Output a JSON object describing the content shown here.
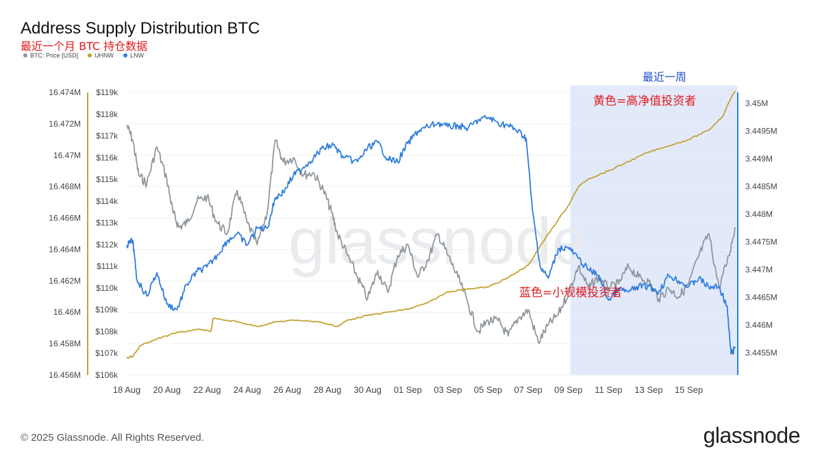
{
  "header": {
    "title": "Address Supply Distribution BTC",
    "subtitle": "最近一个月 BTC 持仓数据"
  },
  "legend": [
    {
      "label": "BTC: Price [USD]",
      "color": "#8f979c"
    },
    {
      "label": "UHNW",
      "color": "#c3a233"
    },
    {
      "label": "LNW",
      "color": "#2f7ddb"
    }
  ],
  "annotations": {
    "recent_week": "最近一周",
    "yellow_note": "黄色=高净值投资者",
    "blue_note": "蓝色=小规模投资者"
  },
  "footer": {
    "copyright": "© 2025 Glassnode. All Rights Reserved.",
    "brand": "glassnode"
  },
  "watermark": "glassnode",
  "colors": {
    "price": "#8f979c",
    "uhnw": "#c3a233",
    "lnw": "#2f7ddb",
    "highlight": "#dfe7fb",
    "annotation_red": "#e01b1b",
    "annotation_blue": "#1e50c8"
  },
  "chart_data": {
    "type": "line",
    "x_ticks": [
      "18 Aug",
      "20 Aug",
      "22 Aug",
      "24 Aug",
      "26 Aug",
      "28 Aug",
      "30 Aug",
      "01 Sep",
      "03 Sep",
      "05 Sep",
      "07 Sep",
      "09 Sep",
      "11 Sep",
      "13 Sep",
      "15 Sep"
    ],
    "x_range_days": [
      0,
      30.3
    ],
    "highlight_range_days": [
      22.1,
      30.3
    ],
    "y_left_ticks": [
      "16.474M",
      "16.472M",
      "16.47M",
      "16.468M",
      "16.466M",
      "16.464M",
      "16.462M",
      "16.46M",
      "16.458M",
      "16.456M"
    ],
    "y_left_range": [
      16.456,
      16.474
    ],
    "y_price_ticks": [
      "$119k",
      "$118k",
      "$117k",
      "$116k",
      "$115k",
      "$114k",
      "$113k",
      "$112k",
      "$111k",
      "$110k",
      "$109k",
      "$108k",
      "$107k",
      "$106k"
    ],
    "y_price_range": [
      106,
      119
    ],
    "y_right_ticks": [
      "3.45M",
      "3.4495M",
      "3.449M",
      "3.4485M",
      "3.448M",
      "3.4475M",
      "3.447M",
      "3.4465M",
      "3.446M",
      "3.4455M"
    ],
    "y_right_range": [
      3.4451,
      3.4502
    ],
    "series": [
      {
        "name": "BTC: Price [USD]",
        "axis": "price",
        "points": [
          [
            0,
            117.5
          ],
          [
            0.3,
            116.8
          ],
          [
            0.6,
            115.2
          ],
          [
            1,
            114.8
          ],
          [
            1.5,
            116.5
          ],
          [
            2,
            115.0
          ],
          [
            2.3,
            113.5
          ],
          [
            2.6,
            112.8
          ],
          [
            3,
            113.0
          ],
          [
            3.5,
            114.0
          ],
          [
            4,
            114.2
          ],
          [
            4.5,
            113.0
          ],
          [
            5,
            112.5
          ],
          [
            5.5,
            114.5
          ],
          [
            6,
            113.0
          ],
          [
            6.5,
            112.0
          ],
          [
            7,
            113.5
          ],
          [
            7.4,
            116.8
          ],
          [
            7.8,
            115.8
          ],
          [
            8.3,
            116.0
          ],
          [
            8.8,
            115.2
          ],
          [
            9.3,
            115.3
          ],
          [
            9.8,
            114.5
          ],
          [
            10.2,
            113.5
          ],
          [
            10.5,
            112.5
          ],
          [
            11,
            111.5
          ],
          [
            11.5,
            110.5
          ],
          [
            12,
            109.5
          ],
          [
            12.5,
            110.8
          ],
          [
            13,
            109.8
          ],
          [
            13.5,
            111.5
          ],
          [
            14,
            112.0
          ],
          [
            14.5,
            110.5
          ],
          [
            15,
            111.3
          ],
          [
            15.5,
            112.5
          ],
          [
            16,
            111.5
          ],
          [
            16.5,
            110.5
          ],
          [
            17,
            109.3
          ],
          [
            17.5,
            108.0
          ],
          [
            18,
            108.5
          ],
          [
            18.5,
            108.5
          ],
          [
            19,
            107.8
          ],
          [
            19.5,
            108.6
          ],
          [
            20,
            109.0
          ],
          [
            20.5,
            107.5
          ],
          [
            21,
            108.3
          ],
          [
            21.5,
            108.8
          ],
          [
            22,
            109.8
          ],
          [
            22.5,
            111.0
          ],
          [
            23,
            110.0
          ],
          [
            23.5,
            110.5
          ],
          [
            24,
            110.0
          ],
          [
            24.5,
            110.2
          ],
          [
            25,
            111.0
          ],
          [
            25.5,
            110.5
          ],
          [
            26,
            110.3
          ],
          [
            26.5,
            109.5
          ],
          [
            27,
            110.0
          ],
          [
            27.5,
            109.6
          ],
          [
            28,
            110.2
          ],
          [
            28.5,
            111.5
          ],
          [
            29,
            112.5
          ],
          [
            29.5,
            110.0
          ],
          [
            30,
            111.5
          ],
          [
            30.3,
            112.8
          ]
        ]
      },
      {
        "name": "UHNW",
        "axis": "left",
        "points": [
          [
            0,
            16.4571
          ],
          [
            0.3,
            16.4572
          ],
          [
            0.7,
            16.4579
          ],
          [
            1.5,
            16.4583
          ],
          [
            2.5,
            16.4587
          ],
          [
            3.5,
            16.4589
          ],
          [
            4.2,
            16.4588
          ],
          [
            4.3,
            16.4596
          ],
          [
            5.5,
            16.4594
          ],
          [
            6.5,
            16.4591
          ],
          [
            7.5,
            16.4594
          ],
          [
            8.5,
            16.4595
          ],
          [
            9.5,
            16.4594
          ],
          [
            10.5,
            16.4591
          ],
          [
            11,
            16.4595
          ],
          [
            12,
            16.4598
          ],
          [
            13,
            16.46
          ],
          [
            14,
            16.4602
          ],
          [
            15,
            16.4606
          ],
          [
            16,
            16.4613
          ],
          [
            17,
            16.4615
          ],
          [
            18,
            16.4616
          ],
          [
            19,
            16.4622
          ],
          [
            20,
            16.463
          ],
          [
            21,
            16.465
          ],
          [
            22,
            16.4668
          ],
          [
            22.5,
            16.468
          ],
          [
            23,
            16.4685
          ],
          [
            24,
            16.469
          ],
          [
            25,
            16.4696
          ],
          [
            26,
            16.4702
          ],
          [
            27,
            16.4706
          ],
          [
            28,
            16.471
          ],
          [
            29,
            16.4716
          ],
          [
            29.7,
            16.4725
          ],
          [
            30,
            16.4734
          ],
          [
            30.3,
            16.4741
          ]
        ]
      },
      {
        "name": "LNW",
        "axis": "right",
        "points": [
          [
            0,
            3.44744
          ],
          [
            0.3,
            3.44753
          ],
          [
            0.5,
            3.44683
          ],
          [
            1,
            3.44653
          ],
          [
            1.5,
            3.44695
          ],
          [
            2,
            3.44638
          ],
          [
            2.5,
            3.44628
          ],
          [
            3,
            3.44674
          ],
          [
            3.5,
            3.44697
          ],
          [
            4,
            3.44705
          ],
          [
            4.5,
            3.44726
          ],
          [
            5,
            3.44752
          ],
          [
            5.5,
            3.44765
          ],
          [
            6,
            3.44745
          ],
          [
            6.5,
            3.44775
          ],
          [
            7,
            3.44775
          ],
          [
            7.4,
            3.4483
          ],
          [
            7.8,
            3.4484
          ],
          [
            8.3,
            3.4487
          ],
          [
            8.8,
            3.44885
          ],
          [
            9.3,
            3.44902
          ],
          [
            9.8,
            3.4492
          ],
          [
            10.3,
            3.44925
          ],
          [
            10.8,
            3.44902
          ],
          [
            11.5,
            3.44895
          ],
          [
            12,
            3.4492
          ],
          [
            12.5,
            3.4493
          ],
          [
            13,
            3.449
          ],
          [
            13.5,
            3.44895
          ],
          [
            14,
            3.44928
          ],
          [
            14.5,
            3.4495
          ],
          [
            15,
            3.44958
          ],
          [
            15.5,
            3.44965
          ],
          [
            16,
            3.44958
          ],
          [
            16.5,
            3.4496
          ],
          [
            17,
            3.44955
          ],
          [
            17.5,
            3.4497
          ],
          [
            18,
            3.44975
          ],
          [
            18.5,
            3.44965
          ],
          [
            19,
            3.4496
          ],
          [
            19.5,
            3.4495
          ],
          [
            19.9,
            3.44937
          ],
          [
            20.2,
            3.4481
          ],
          [
            20.6,
            3.44705
          ],
          [
            21,
            3.44685
          ],
          [
            21.5,
            3.44738
          ],
          [
            22,
            3.4474
          ],
          [
            22.5,
            3.4472
          ],
          [
            23,
            3.447
          ],
          [
            23.5,
            3.4469
          ],
          [
            24,
            3.44645
          ],
          [
            24.5,
            3.44665
          ],
          [
            25,
            3.4466
          ],
          [
            25.5,
            3.4467
          ],
          [
            26,
            3.4467
          ],
          [
            26.5,
            3.4466
          ],
          [
            27,
            3.4469
          ],
          [
            27.5,
            3.4468
          ],
          [
            28,
            3.4467
          ],
          [
            28.5,
            3.44685
          ],
          [
            29,
            3.44668
          ],
          [
            29.5,
            3.4467
          ],
          [
            29.9,
            3.44635
          ],
          [
            30.1,
            3.44548
          ],
          [
            30.3,
            3.44558
          ]
        ]
      }
    ]
  }
}
